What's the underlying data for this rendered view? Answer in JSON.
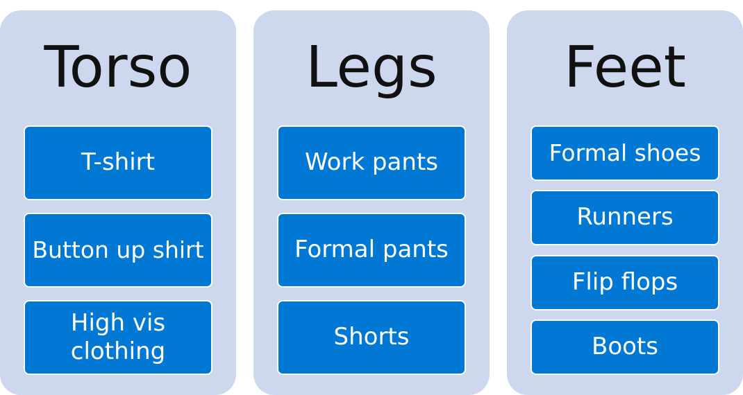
{
  "groups": [
    {
      "title": "Torso",
      "items": [
        "T-shirt",
        "Button up shirt",
        "High vis clothing"
      ]
    },
    {
      "title": "Legs",
      "items": [
        "Work pants",
        "Formal pants",
        "Shorts"
      ]
    },
    {
      "title": "Feet",
      "items": [
        "Formal shoes",
        "Runners",
        "Flip flops",
        "Boots"
      ]
    }
  ],
  "colors": {
    "group_background": "#cdd8ee",
    "item_background": "#0078d4",
    "item_text": "#ffffff",
    "title_text": "#111111"
  }
}
